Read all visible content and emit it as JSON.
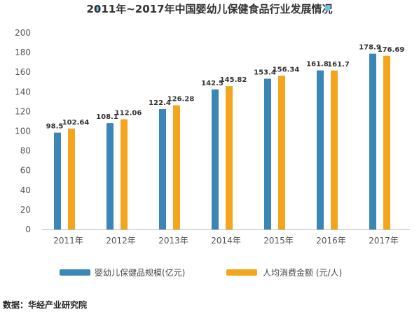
{
  "chart_data": {
    "type": "bar",
    "title": "2011年~2017年中国婴幼儿保健食品行业发展情况",
    "categories": [
      "2011年",
      "2012年",
      "2013年",
      "2014年",
      "2015年",
      "2016年",
      "2017年"
    ],
    "series": [
      {
        "name": "婴幼儿保健品规模(亿元)",
        "values": [
          98.5,
          108.1,
          122.4,
          142.5,
          153.4,
          161.8,
          178.9
        ],
        "labels": [
          "98.5",
          "108.1",
          "122.4",
          "142.5",
          "153.4",
          "161.8",
          "178.9"
        ],
        "color": "#3a86b6"
      },
      {
        "name": "人均消费金额 (元/人)",
        "values": [
          102.64,
          112.06,
          126.28,
          145.82,
          156.34,
          161.7,
          176.69
        ],
        "labels": [
          "102.64",
          "112.06",
          "126.28",
          "145.82",
          "156.34",
          "161.7",
          "176.69"
        ],
        "color": "#f2a51d"
      }
    ],
    "yticks": [
      "0",
      "20",
      "40",
      "60",
      "80",
      "100",
      "120",
      "140",
      "160",
      "180",
      "200"
    ],
    "ylim": [
      0,
      200
    ],
    "grid": false,
    "legend_position": "bottom",
    "title_marker_color": "#6cc3e8"
  },
  "source": "数据：华经产业研究院"
}
